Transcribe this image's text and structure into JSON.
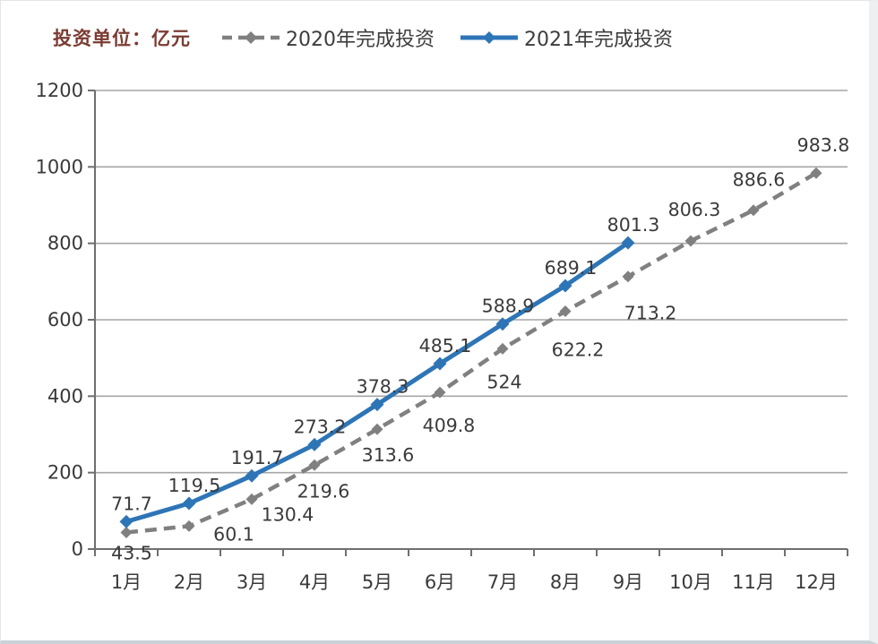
{
  "chart_data": {
    "type": "line",
    "unit_label": "投资单位：亿元",
    "unit_label_color": "#7a3b32",
    "categories": [
      "1月",
      "2月",
      "3月",
      "4月",
      "5月",
      "6月",
      "7月",
      "8月",
      "9月",
      "10月",
      "11月",
      "12月"
    ],
    "series": [
      {
        "name": "2020年完成投资",
        "color": "#808080",
        "line_style": "dashed",
        "marker": "diamond",
        "values": [
          43.5,
          60.1,
          130.4,
          219.6,
          313.6,
          409.8,
          524,
          622.2,
          713.2,
          806.3,
          886.6,
          983.8
        ]
      },
      {
        "name": "2021年完成投资",
        "color": "#2e75b6",
        "line_style": "solid",
        "marker": "diamond",
        "values": [
          71.7,
          119.5,
          191.7,
          273.2,
          378.3,
          485.1,
          588.9,
          689.1,
          801.3
        ]
      }
    ],
    "ylim": [
      0,
      1200
    ],
    "yticks": [
      0,
      200,
      400,
      600,
      800,
      1000,
      1200
    ],
    "grid": true,
    "legend_position": "top",
    "axis_color": "#6f6f6f",
    "grid_color": "#a6a6a6",
    "tick_label_color": "#3a3a3a",
    "data_label_color": "#3a3a3a"
  }
}
